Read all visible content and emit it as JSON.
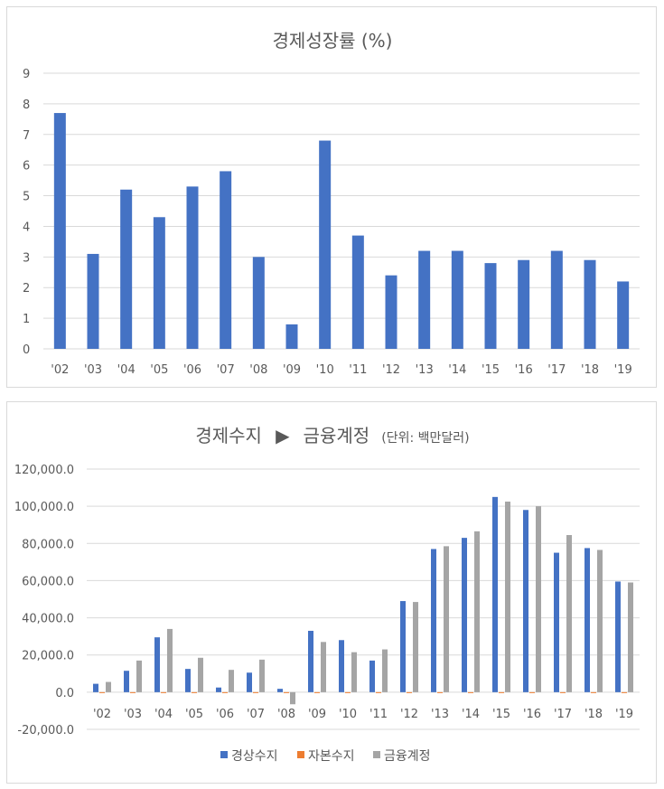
{
  "chart_data": [
    {
      "type": "bar",
      "title": "경제성장률 (%)",
      "categories": [
        "'02",
        "'03",
        "'04",
        "'05",
        "'06",
        "'07",
        "'08",
        "'09",
        "'10",
        "'11",
        "'12",
        "'13",
        "'14",
        "'15",
        "'16",
        "'17",
        "'18",
        "'19"
      ],
      "series": [
        {
          "values": [
            7.7,
            3.1,
            5.2,
            4.3,
            5.3,
            5.8,
            3.0,
            0.8,
            6.8,
            3.7,
            2.4,
            3.2,
            3.2,
            2.8,
            2.9,
            3.2,
            2.9,
            2.2
          ],
          "color": "#4472c4"
        }
      ],
      "ylim": [
        0,
        9
      ],
      "yticks": [
        "0",
        "1",
        "2",
        "3",
        "4",
        "5",
        "6",
        "7",
        "8",
        "9"
      ],
      "grid": true,
      "legend": "none"
    },
    {
      "type": "bar",
      "title": "경제수지",
      "title_arrow": "▶",
      "title_part2": "금융계정",
      "title_unit": "(단위: 백만달러)",
      "categories": [
        "'02",
        "'03",
        "'04",
        "'05",
        "'06",
        "'07",
        "'08",
        "'09",
        "'10",
        "'11",
        "'12",
        "'13",
        "'14",
        "'15",
        "'16",
        "'17",
        "'18",
        "'19"
      ],
      "series": [
        {
          "name": "경상수지",
          "color": "#4472c4",
          "values": [
            4500,
            11500,
            29500,
            12500,
            2500,
            10500,
            1800,
            33000,
            28000,
            17000,
            49000,
            77000,
            83000,
            105000,
            98000,
            75000,
            77500,
            59500
          ]
        },
        {
          "name": "자본수지",
          "color": "#ed7d31",
          "values": [
            -100,
            -100,
            -100,
            -100,
            -100,
            -100,
            -100,
            -100,
            -100,
            -100,
            -100,
            -100,
            -100,
            -100,
            -100,
            -100,
            -100,
            -100
          ]
        },
        {
          "name": "금융계정",
          "color": "#a5a5a5",
          "values": [
            5500,
            17000,
            34000,
            18500,
            12000,
            17500,
            -6500,
            27000,
            21500,
            23000,
            48500,
            78500,
            86500,
            102500,
            100000,
            84500,
            76500,
            59000
          ]
        }
      ],
      "ylim": [
        -20000,
        120000
      ],
      "yticks": [
        "-20,000.0",
        "0.0",
        "20,000.0",
        "40,000.0",
        "60,000.0",
        "80,000.0",
        "100,000.0",
        "120,000.0"
      ],
      "grid": true,
      "legend": "bottom-center"
    }
  ]
}
